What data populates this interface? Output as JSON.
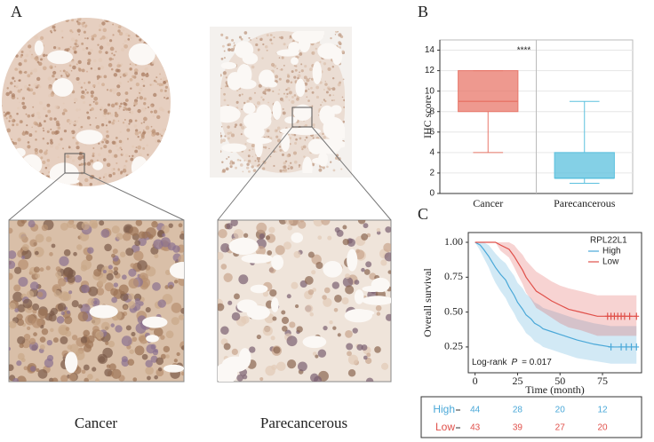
{
  "panels": {
    "a": "A",
    "b": "B",
    "c": "C"
  },
  "images": [
    {
      "caption": "Cancer"
    },
    {
      "caption": "Parecancerous"
    }
  ],
  "chart_data": [
    {
      "type": "box",
      "categories": [
        "Cancer",
        "Parecancerous"
      ],
      "boxes": [
        {
          "min": 4,
          "q1": 8,
          "median": 9,
          "q3": 12,
          "max": 12,
          "color": "#e8776a"
        },
        {
          "min": 1,
          "q1": 1.5,
          "median": 1.5,
          "q3": 4,
          "max": 9,
          "color": "#5bc0de"
        }
      ],
      "ylabel": "IHC score",
      "ylim": [
        0,
        15
      ],
      "yticks": [
        0,
        2,
        4,
        6,
        8,
        10,
        12,
        14
      ],
      "annotation": "****",
      "grid": true
    },
    {
      "type": "step",
      "xlabel": "Time (month)",
      "ylabel": "Overall survival",
      "xlim": [
        -4,
        98
      ],
      "xticks": [
        0,
        25,
        50,
        75
      ],
      "ylim": [
        0.065,
        1.07
      ],
      "yticks": [
        {
          "value": 0.25,
          "label": "0.25"
        },
        {
          "value": 0.5,
          "label": "0.50"
        },
        {
          "value": 0.75,
          "label": "0.75"
        },
        {
          "value": 1,
          "label": "1.00"
        }
      ],
      "legend_title": "RPL22L1",
      "legend": "top-right",
      "series": [
        {
          "name": "High",
          "color": "#4aa8d8",
          "x": [
            0,
            3,
            5,
            8,
            10,
            12,
            15,
            18,
            20,
            23,
            25,
            28,
            30,
            33,
            35,
            38,
            40,
            45,
            50,
            55,
            60,
            70,
            80,
            95
          ],
          "values": [
            1,
            0.98,
            0.95,
            0.9,
            0.86,
            0.82,
            0.77,
            0.73,
            0.68,
            0.62,
            0.57,
            0.52,
            0.48,
            0.45,
            0.42,
            0.4,
            0.38,
            0.36,
            0.34,
            0.32,
            0.3,
            0.27,
            0.25,
            0.25
          ],
          "lower": [
            1,
            0.94,
            0.89,
            0.82,
            0.76,
            0.71,
            0.65,
            0.6,
            0.55,
            0.49,
            0.44,
            0.39,
            0.35,
            0.32,
            0.29,
            0.27,
            0.25,
            0.23,
            0.21,
            0.19,
            0.17,
            0.15,
            0.13,
            0.13
          ],
          "upper": [
            1,
            1,
            1,
            0.98,
            0.95,
            0.92,
            0.88,
            0.85,
            0.81,
            0.76,
            0.71,
            0.67,
            0.63,
            0.6,
            0.57,
            0.55,
            0.53,
            0.51,
            0.49,
            0.47,
            0.45,
            0.42,
            0.4,
            0.4
          ],
          "censored": [
            80,
            86,
            89,
            92,
            95
          ]
        },
        {
          "name": "Low",
          "color": "#e0504a",
          "x": [
            0,
            12,
            15,
            20,
            23,
            25,
            28,
            30,
            33,
            36,
            40,
            45,
            50,
            55,
            62,
            72,
            95
          ],
          "values": [
            1,
            1,
            0.98,
            0.95,
            0.9,
            0.86,
            0.8,
            0.75,
            0.7,
            0.65,
            0.62,
            0.58,
            0.55,
            0.52,
            0.5,
            0.47,
            0.47
          ],
          "lower": [
            1,
            1,
            0.94,
            0.89,
            0.82,
            0.77,
            0.7,
            0.64,
            0.59,
            0.53,
            0.5,
            0.46,
            0.42,
            0.39,
            0.37,
            0.33,
            0.33
          ],
          "upper": [
            1,
            1,
            1,
            1,
            0.98,
            0.95,
            0.91,
            0.87,
            0.83,
            0.79,
            0.76,
            0.72,
            0.69,
            0.67,
            0.65,
            0.62,
            0.62
          ],
          "censored": [
            78,
            80,
            82,
            84,
            86,
            88,
            91,
            95
          ]
        }
      ],
      "annotation": {
        "text": "Log-rank",
        "p": "P",
        "value": "= 0.017"
      },
      "risk_table": [
        {
          "name": "High",
          "values": [
            44,
            28,
            20,
            12
          ]
        },
        {
          "name": "Low",
          "values": [
            43,
            39,
            27,
            20
          ]
        }
      ]
    }
  ]
}
